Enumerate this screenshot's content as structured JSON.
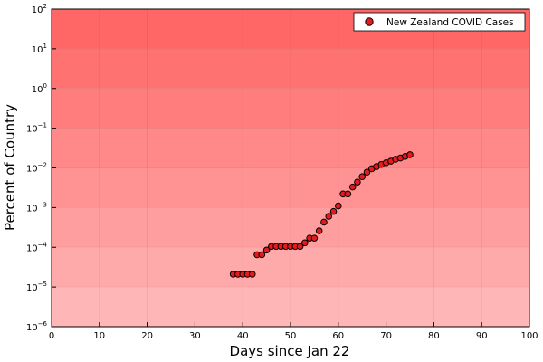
{
  "chart_data": {
    "type": "scatter",
    "title": "",
    "xlabel": "Days since Jan 22",
    "ylabel": "Percent of Country",
    "xlim": [
      0,
      100
    ],
    "ylim": [
      1e-06,
      100
    ],
    "y_scale": "log",
    "x_ticks": [
      0,
      10,
      20,
      30,
      40,
      50,
      60,
      70,
      80,
      90,
      100
    ],
    "y_ticks": [
      {
        "exp": -6,
        "label": "10",
        "sup": "−6"
      },
      {
        "exp": -5,
        "label": "10",
        "sup": "−5"
      },
      {
        "exp": -4,
        "label": "10",
        "sup": "−4"
      },
      {
        "exp": -3,
        "label": "10",
        "sup": "−3"
      },
      {
        "exp": -2,
        "label": "10",
        "sup": "−2"
      },
      {
        "exp": -1,
        "label": "10",
        "sup": "−1"
      },
      {
        "exp": 0,
        "label": "10",
        "sup": "0"
      },
      {
        "exp": 1,
        "label": "10",
        "sup": "1"
      },
      {
        "exp": 2,
        "label": "10",
        "sup": "2"
      }
    ],
    "grid": true,
    "legend_position": "top-right",
    "background_bands": [
      "#ffb6b6",
      "#ffaaaa",
      "#ff9e9e",
      "#ff9393",
      "#ff8888",
      "#ff7d7d",
      "#ff7272",
      "#ff6666"
    ],
    "series": [
      {
        "name": "New Zealand COVID Cases",
        "color": "#e41a1c",
        "points": [
          [
            38,
            2.1e-05
          ],
          [
            39,
            2.1e-05
          ],
          [
            40,
            2.1e-05
          ],
          [
            41,
            2.1e-05
          ],
          [
            42,
            2.1e-05
          ],
          [
            43,
            6.5e-05
          ],
          [
            44,
            6.5e-05
          ],
          [
            45,
            8.5e-05
          ],
          [
            46,
            0.000105
          ],
          [
            47,
            0.000105
          ],
          [
            48,
            0.000105
          ],
          [
            49,
            0.000105
          ],
          [
            50,
            0.000105
          ],
          [
            51,
            0.000105
          ],
          [
            52,
            0.000105
          ],
          [
            53,
            0.00013
          ],
          [
            54,
            0.00017
          ],
          [
            55,
            0.00017
          ],
          [
            56,
            0.00026
          ],
          [
            57,
            0.00043
          ],
          [
            58,
            0.0006
          ],
          [
            59,
            0.0008
          ],
          [
            60,
            0.0011
          ],
          [
            61,
            0.0022
          ],
          [
            62,
            0.0022
          ],
          [
            63,
            0.0033
          ],
          [
            64,
            0.0044
          ],
          [
            65,
            0.006
          ],
          [
            66,
            0.0078
          ],
          [
            67,
            0.0095
          ],
          [
            68,
            0.0108
          ],
          [
            69,
            0.0122
          ],
          [
            70,
            0.0135
          ],
          [
            71,
            0.0148
          ],
          [
            72,
            0.0165
          ],
          [
            73,
            0.0178
          ],
          [
            74,
            0.0195
          ],
          [
            75,
            0.0215
          ]
        ]
      }
    ]
  }
}
